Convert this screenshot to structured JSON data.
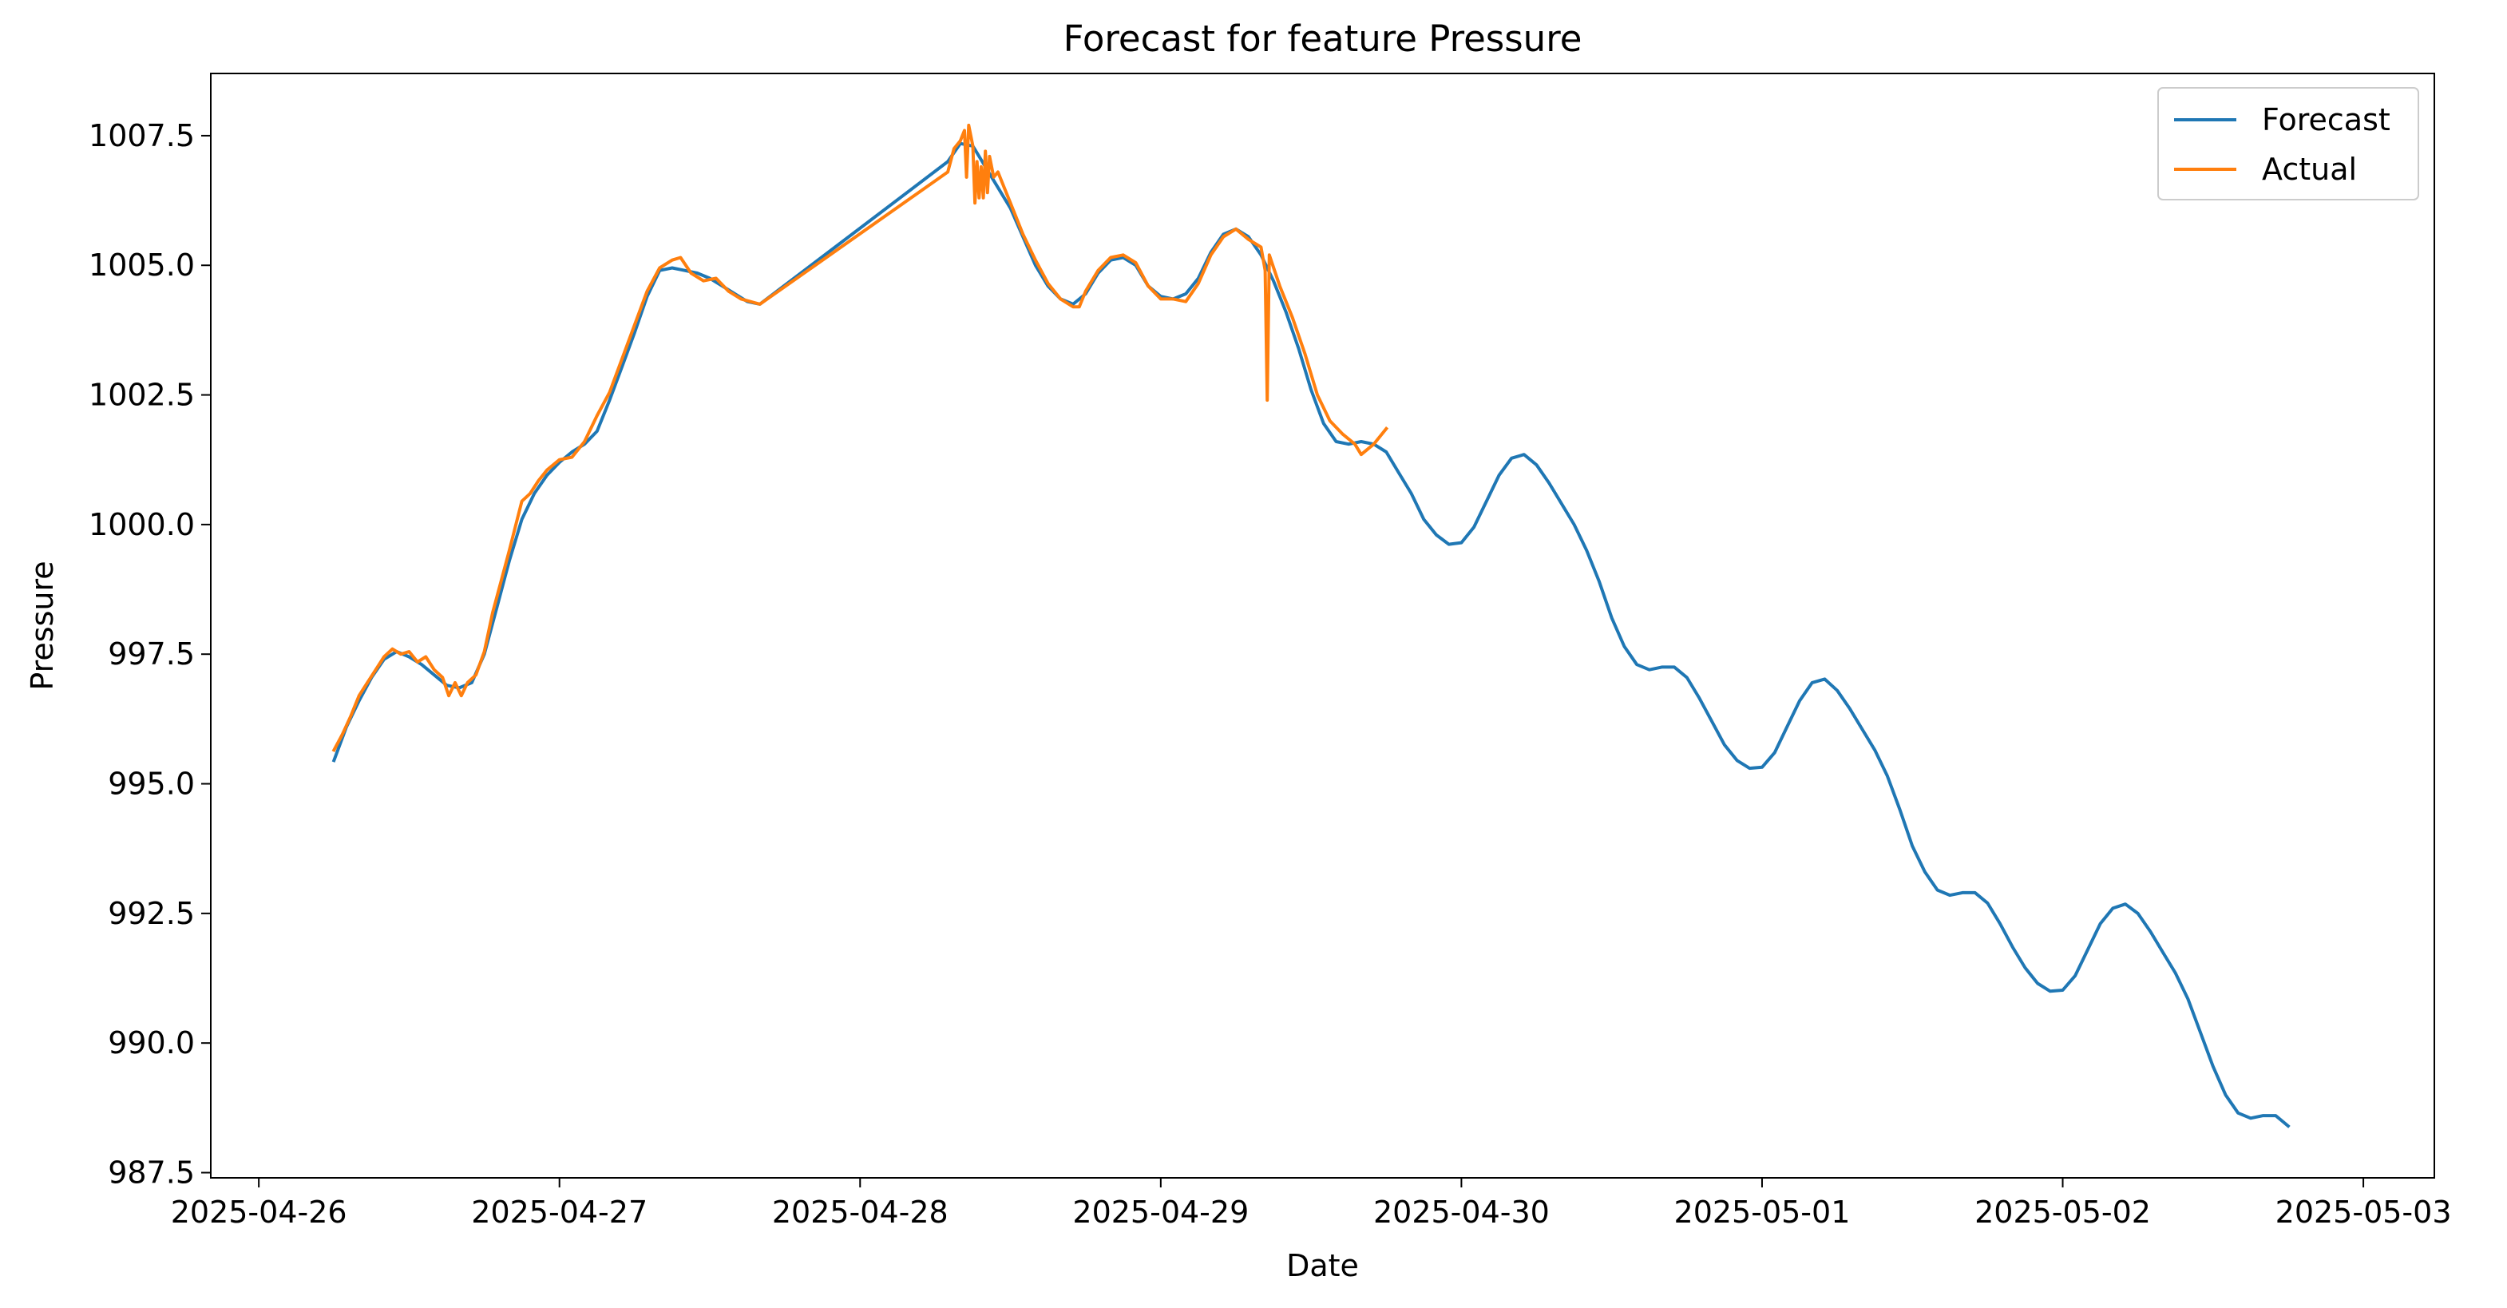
{
  "chart_data": {
    "type": "line",
    "title": "Forecast for feature Pressure",
    "xlabel": "Date",
    "ylabel": "Pressure",
    "xlim": [
      "2025-04-25 20:10",
      "2025-05-03 05:40"
    ],
    "ylim": [
      987.4,
      1008.7
    ],
    "x_ticks": [
      "2025-04-26",
      "2025-04-27",
      "2025-04-28",
      "2025-04-29",
      "2025-04-30",
      "2025-05-01",
      "2025-05-02",
      "2025-05-03"
    ],
    "y_ticks": [
      "987.5",
      "990.0",
      "992.5",
      "995.0",
      "997.5",
      "1000.0",
      "1002.5",
      "1005.0",
      "1007.5"
    ],
    "grid": false,
    "legend": "top-right",
    "series": [
      {
        "name": "Forecast",
        "color": "#1f77b4",
        "points": [
          [
            "2025-04-26 06:00",
            995.45
          ],
          [
            "2025-04-26 07:00",
            996.1
          ],
          [
            "2025-04-26 08:00",
            996.6
          ],
          [
            "2025-04-26 09:00",
            997.05
          ],
          [
            "2025-04-26 10:00",
            997.4
          ],
          [
            "2025-04-26 11:00",
            997.55
          ],
          [
            "2025-04-26 12:00",
            997.45
          ],
          [
            "2025-04-26 13:00",
            997.3
          ],
          [
            "2025-04-26 14:00",
            997.1
          ],
          [
            "2025-04-26 15:00",
            996.9
          ],
          [
            "2025-04-26 16:00",
            996.85
          ],
          [
            "2025-04-26 17:00",
            996.95
          ],
          [
            "2025-04-26 18:00",
            997.5
          ],
          [
            "2025-04-26 19:00",
            998.4
          ],
          [
            "2025-04-26 20:00",
            999.3
          ],
          [
            "2025-04-26 21:00",
            1000.1
          ],
          [
            "2025-04-26 22:00",
            1000.6
          ],
          [
            "2025-04-26 23:00",
            1000.95
          ],
          [
            "2025-04-27 00:00",
            1001.2
          ],
          [
            "2025-04-27 01:00",
            1001.4
          ],
          [
            "2025-04-27 02:00",
            1001.55
          ],
          [
            "2025-04-27 03:00",
            1001.8
          ],
          [
            "2025-04-27 04:00",
            1002.4
          ],
          [
            "2025-04-27 05:00",
            1003.05
          ],
          [
            "2025-04-27 06:00",
            1003.7
          ],
          [
            "2025-04-27 07:00",
            1004.4
          ],
          [
            "2025-04-27 08:00",
            1004.9
          ],
          [
            "2025-04-27 09:00",
            1004.95
          ],
          [
            "2025-04-27 10:00",
            1004.9
          ],
          [
            "2025-04-27 11:00",
            1004.85
          ],
          [
            "2025-04-27 12:00",
            1004.75
          ],
          [
            "2025-04-27 13:00",
            1004.6
          ],
          [
            "2025-04-27 14:00",
            1004.45
          ],
          [
            "2025-04-27 15:00",
            1004.3
          ],
          [
            "2025-04-27 16:00",
            1004.25
          ],
          [
            "2025-04-28 07:00",
            1007.0
          ],
          [
            "2025-04-28 08:00",
            1007.35
          ],
          [
            "2025-04-28 09:00",
            1007.3
          ],
          [
            "2025-04-28 10:00",
            1006.9
          ],
          [
            "2025-04-28 11:00",
            1006.5
          ],
          [
            "2025-04-28 12:00",
            1006.1
          ],
          [
            "2025-04-28 13:00",
            1005.55
          ],
          [
            "2025-04-28 14:00",
            1005.0
          ],
          [
            "2025-04-28 15:00",
            1004.6
          ],
          [
            "2025-04-28 16:00",
            1004.35
          ],
          [
            "2025-04-28 17:00",
            1004.25
          ],
          [
            "2025-04-28 18:00",
            1004.45
          ],
          [
            "2025-04-28 19:00",
            1004.85
          ],
          [
            "2025-04-28 20:00",
            1005.1
          ],
          [
            "2025-04-28 21:00",
            1005.15
          ],
          [
            "2025-04-28 22:00",
            1005.0
          ],
          [
            "2025-04-28 23:00",
            1004.6
          ],
          [
            "2025-04-29 00:00",
            1004.4
          ],
          [
            "2025-04-29 01:00",
            1004.35
          ],
          [
            "2025-04-29 02:00",
            1004.45
          ],
          [
            "2025-04-29 03:00",
            1004.75
          ],
          [
            "2025-04-29 04:00",
            1005.25
          ],
          [
            "2025-04-29 05:00",
            1005.6
          ],
          [
            "2025-04-29 06:00",
            1005.7
          ],
          [
            "2025-04-29 07:00",
            1005.55
          ],
          [
            "2025-04-29 08:00",
            1005.2
          ],
          [
            "2025-04-29 09:00",
            1004.7
          ],
          [
            "2025-04-29 10:00",
            1004.1
          ],
          [
            "2025-04-29 11:00",
            1003.4
          ],
          [
            "2025-04-29 12:00",
            1002.6
          ],
          [
            "2025-04-29 13:00",
            1001.95
          ],
          [
            "2025-04-29 14:00",
            1001.6
          ],
          [
            "2025-04-29 15:00",
            1001.55
          ],
          [
            "2025-04-29 16:00",
            1001.6
          ],
          [
            "2025-04-29 17:00",
            1001.55
          ],
          [
            "2025-04-29 18:00",
            1001.4
          ],
          [
            "2025-04-29 19:00",
            1001.0
          ],
          [
            "2025-04-29 20:00",
            1000.6
          ],
          [
            "2025-04-29 21:00",
            1000.1
          ],
          [
            "2025-04-29 22:00",
            999.8
          ],
          [
            "2025-04-29 23:00",
            999.62
          ],
          [
            "2025-04-30 00:00",
            999.65
          ],
          [
            "2025-04-30 01:00",
            999.95
          ],
          [
            "2025-04-30 02:00",
            1000.45
          ],
          [
            "2025-04-30 03:00",
            1000.95
          ],
          [
            "2025-04-30 04:00",
            1001.28
          ],
          [
            "2025-04-30 05:00",
            1001.35
          ],
          [
            "2025-04-30 06:00",
            1001.15
          ],
          [
            "2025-04-30 07:00",
            1000.8
          ],
          [
            "2025-04-30 08:00",
            1000.4
          ],
          [
            "2025-04-30 09:00",
            1000.0
          ],
          [
            "2025-04-30 10:00",
            999.5
          ],
          [
            "2025-04-30 11:00",
            998.9
          ],
          [
            "2025-04-30 12:00",
            998.2
          ],
          [
            "2025-04-30 13:00",
            997.65
          ],
          [
            "2025-04-30 14:00",
            997.3
          ],
          [
            "2025-04-30 15:00",
            997.2
          ],
          [
            "2025-04-30 16:00",
            997.25
          ],
          [
            "2025-04-30 17:00",
            997.25
          ],
          [
            "2025-04-30 18:00",
            997.05
          ],
          [
            "2025-04-30 19:00",
            996.65
          ],
          [
            "2025-04-30 20:00",
            996.2
          ],
          [
            "2025-04-30 21:00",
            995.75
          ],
          [
            "2025-04-30 22:00",
            995.45
          ],
          [
            "2025-04-30 23:00",
            995.3
          ],
          [
            "2025-05-01 00:00",
            995.32
          ],
          [
            "2025-05-01 01:00",
            995.6
          ],
          [
            "2025-05-01 02:00",
            996.1
          ],
          [
            "2025-05-01 03:00",
            996.6
          ],
          [
            "2025-05-01 04:00",
            996.95
          ],
          [
            "2025-05-01 05:00",
            997.02
          ],
          [
            "2025-05-01 06:00",
            996.8
          ],
          [
            "2025-05-01 07:00",
            996.45
          ],
          [
            "2025-05-01 08:00",
            996.05
          ],
          [
            "2025-05-01 09:00",
            995.65
          ],
          [
            "2025-05-01 10:00",
            995.15
          ],
          [
            "2025-05-01 11:00",
            994.5
          ],
          [
            "2025-05-01 12:00",
            993.8
          ],
          [
            "2025-05-01 13:00",
            993.3
          ],
          [
            "2025-05-01 14:00",
            992.95
          ],
          [
            "2025-05-01 15:00",
            992.85
          ],
          [
            "2025-05-01 16:00",
            992.9
          ],
          [
            "2025-05-01 17:00",
            992.9
          ],
          [
            "2025-05-01 18:00",
            992.7
          ],
          [
            "2025-05-01 19:00",
            992.3
          ],
          [
            "2025-05-01 20:00",
            991.85
          ],
          [
            "2025-05-01 21:00",
            991.45
          ],
          [
            "2025-05-01 22:00",
            991.15
          ],
          [
            "2025-05-01 23:00",
            991.0
          ],
          [
            "2025-05-02 00:00",
            991.02
          ],
          [
            "2025-05-02 01:00",
            991.3
          ],
          [
            "2025-05-02 02:00",
            991.8
          ],
          [
            "2025-05-02 03:00",
            992.3
          ],
          [
            "2025-05-02 04:00",
            992.6
          ],
          [
            "2025-05-02 05:00",
            992.68
          ],
          [
            "2025-05-02 06:00",
            992.5
          ],
          [
            "2025-05-02 07:00",
            992.15
          ],
          [
            "2025-05-02 08:00",
            991.75
          ],
          [
            "2025-05-02 09:00",
            991.35
          ],
          [
            "2025-05-02 10:00",
            990.85
          ],
          [
            "2025-05-02 11:00",
            990.2
          ],
          [
            "2025-05-02 12:00",
            989.55
          ],
          [
            "2025-05-02 13:00",
            989.0
          ],
          [
            "2025-05-02 14:00",
            988.65
          ],
          [
            "2025-05-02 15:00",
            988.55
          ],
          [
            "2025-05-02 16:00",
            988.6
          ],
          [
            "2025-05-02 17:00",
            988.6
          ],
          [
            "2025-05-02 18:00",
            988.4
          ]
        ]
      },
      {
        "name": "Actual",
        "color": "#ff7f0e",
        "points": [
          [
            "2025-04-26 06:00",
            995.65
          ],
          [
            "2025-04-26 06:40",
            995.95
          ],
          [
            "2025-04-26 07:20",
            996.3
          ],
          [
            "2025-04-26 08:00",
            996.7
          ],
          [
            "2025-04-26 08:40",
            996.95
          ],
          [
            "2025-04-26 09:20",
            997.2
          ],
          [
            "2025-04-26 10:00",
            997.45
          ],
          [
            "2025-04-26 10:40",
            997.6
          ],
          [
            "2025-04-26 11:20",
            997.5
          ],
          [
            "2025-04-26 12:00",
            997.55
          ],
          [
            "2025-04-26 12:40",
            997.35
          ],
          [
            "2025-04-26 13:20",
            997.45
          ],
          [
            "2025-04-26 14:00",
            997.2
          ],
          [
            "2025-04-26 14:40",
            997.05
          ],
          [
            "2025-04-26 15:10",
            996.7
          ],
          [
            "2025-04-26 15:40",
            996.95
          ],
          [
            "2025-04-26 16:10",
            996.7
          ],
          [
            "2025-04-26 16:40",
            996.95
          ],
          [
            "2025-04-26 17:20",
            997.1
          ],
          [
            "2025-04-26 18:00",
            997.55
          ],
          [
            "2025-04-26 18:40",
            998.3
          ],
          [
            "2025-04-26 19:20",
            998.9
          ],
          [
            "2025-04-26 20:00",
            999.5
          ],
          [
            "2025-04-26 21:00",
            1000.45
          ],
          [
            "2025-04-26 21:40",
            1000.6
          ],
          [
            "2025-04-26 22:20",
            1000.85
          ],
          [
            "2025-04-26 23:00",
            1001.05
          ],
          [
            "2025-04-27 00:00",
            1001.25
          ],
          [
            "2025-04-27 01:00",
            1001.3
          ],
          [
            "2025-04-27 02:00",
            1001.6
          ],
          [
            "2025-04-27 03:00",
            1002.1
          ],
          [
            "2025-04-27 04:00",
            1002.55
          ],
          [
            "2025-04-27 05:00",
            1003.2
          ],
          [
            "2025-04-27 06:00",
            1003.85
          ],
          [
            "2025-04-27 07:00",
            1004.5
          ],
          [
            "2025-04-27 08:00",
            1004.95
          ],
          [
            "2025-04-27 09:00",
            1005.1
          ],
          [
            "2025-04-27 09:40",
            1005.15
          ],
          [
            "2025-04-27 10:30",
            1004.85
          ],
          [
            "2025-04-27 11:30",
            1004.7
          ],
          [
            "2025-04-27 12:30",
            1004.75
          ],
          [
            "2025-04-27 13:30",
            1004.5
          ],
          [
            "2025-04-27 14:30",
            1004.35
          ],
          [
            "2025-04-27 16:00",
            1004.25
          ],
          [
            "2025-04-28 07:00",
            1006.8
          ],
          [
            "2025-04-28 07:30",
            1007.25
          ],
          [
            "2025-04-28 08:00",
            1007.4
          ],
          [
            "2025-04-28 08:20",
            1007.6
          ],
          [
            "2025-04-28 08:30",
            1006.7
          ],
          [
            "2025-04-28 08:40",
            1007.7
          ],
          [
            "2025-04-28 09:00",
            1007.3
          ],
          [
            "2025-04-28 09:10",
            1006.2
          ],
          [
            "2025-04-28 09:20",
            1007.0
          ],
          [
            "2025-04-28 09:30",
            1006.3
          ],
          [
            "2025-04-28 09:40",
            1006.9
          ],
          [
            "2025-04-28 09:50",
            1006.3
          ],
          [
            "2025-04-28 10:00",
            1007.2
          ],
          [
            "2025-04-28 10:10",
            1006.4
          ],
          [
            "2025-04-28 10:20",
            1007.1
          ],
          [
            "2025-04-28 10:40",
            1006.7
          ],
          [
            "2025-04-28 11:00",
            1006.8
          ],
          [
            "2025-04-28 11:30",
            1006.5
          ],
          [
            "2025-04-28 12:00",
            1006.2
          ],
          [
            "2025-04-28 13:00",
            1005.6
          ],
          [
            "2025-04-28 14:00",
            1005.1
          ],
          [
            "2025-04-28 15:00",
            1004.65
          ],
          [
            "2025-04-28 16:00",
            1004.35
          ],
          [
            "2025-04-28 17:00",
            1004.2
          ],
          [
            "2025-04-28 17:30",
            1004.2
          ],
          [
            "2025-04-28 18:00",
            1004.5
          ],
          [
            "2025-04-28 19:00",
            1004.9
          ],
          [
            "2025-04-28 20:00",
            1005.15
          ],
          [
            "2025-04-28 21:00",
            1005.2
          ],
          [
            "2025-04-28 22:00",
            1005.05
          ],
          [
            "2025-04-28 23:00",
            1004.6
          ],
          [
            "2025-04-29 00:00",
            1004.35
          ],
          [
            "2025-04-29 01:00",
            1004.35
          ],
          [
            "2025-04-29 02:00",
            1004.3
          ],
          [
            "2025-04-29 03:00",
            1004.65
          ],
          [
            "2025-04-29 04:00",
            1005.2
          ],
          [
            "2025-04-29 05:00",
            1005.55
          ],
          [
            "2025-04-29 06:00",
            1005.7
          ],
          [
            "2025-04-29 07:00",
            1005.5
          ],
          [
            "2025-04-29 08:00",
            1005.35
          ],
          [
            "2025-04-29 08:20",
            1004.9
          ],
          [
            "2025-04-29 08:30",
            1002.4
          ],
          [
            "2025-04-29 08:40",
            1005.2
          ],
          [
            "2025-04-29 09:30",
            1004.6
          ],
          [
            "2025-04-29 10:30",
            1004.0
          ],
          [
            "2025-04-29 11:30",
            1003.3
          ],
          [
            "2025-04-29 12:30",
            1002.5
          ],
          [
            "2025-04-29 13:30",
            1002.0
          ],
          [
            "2025-04-29 14:30",
            1001.75
          ],
          [
            "2025-04-29 15:30",
            1001.55
          ],
          [
            "2025-04-29 16:00",
            1001.35
          ],
          [
            "2025-04-29 17:00",
            1001.55
          ],
          [
            "2025-04-29 18:00",
            1001.85
          ]
        ]
      }
    ]
  }
}
